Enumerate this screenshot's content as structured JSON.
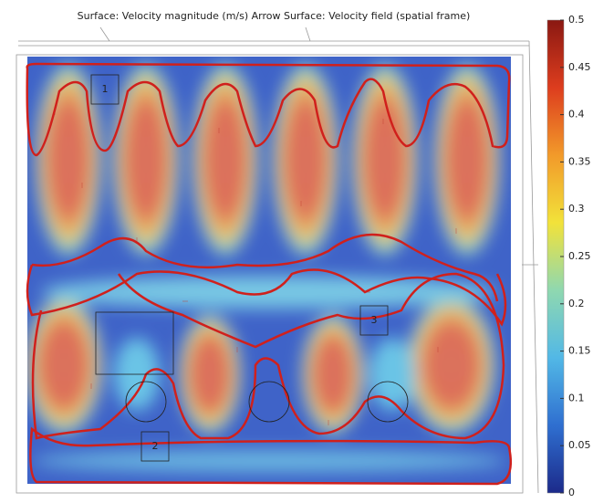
{
  "chart_data": {
    "type": "surface",
    "title": "Surface: Velocity magnitude (m/s)  Arrow Surface: Velocity field (spatial frame)",
    "zlim": [
      0,
      0.5
    ],
    "zticks": [
      0,
      0.05,
      0.1,
      0.15,
      0.2,
      0.25,
      0.3,
      0.35,
      0.4,
      0.45,
      0.5
    ],
    "colormap": [
      "#1c2a8a",
      "#2f6fd0",
      "#52b8e6",
      "#8fd8b0",
      "#f2e23a",
      "#f29a2a",
      "#dd3d1e",
      "#8a1812"
    ],
    "annotations": [
      "1",
      "2",
      "3"
    ]
  }
}
